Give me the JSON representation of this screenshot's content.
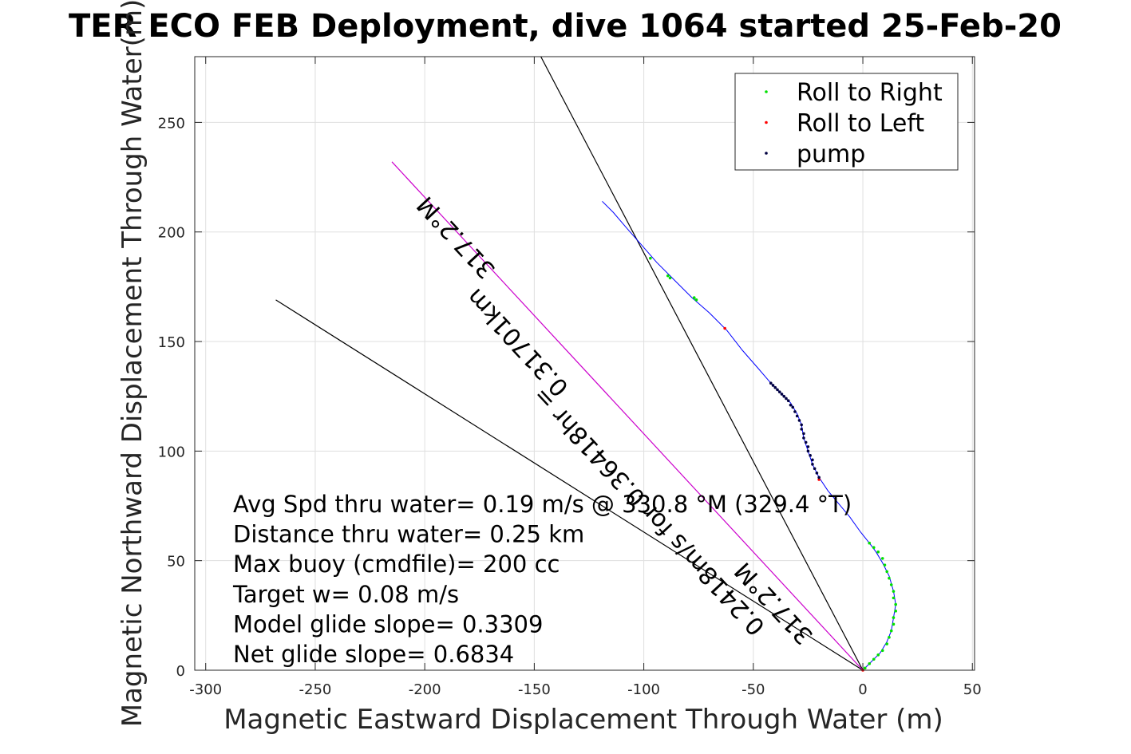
{
  "chart_data": {
    "type": "scatter",
    "title": "TER ECO FEB Deployment, dive 1064 started 25-Feb-20",
    "xlabel": "Magnetic Eastward Displacement Through Water (m)",
    "ylabel": "Magnetic Northward Displacement Through Water(m)",
    "xlim": [
      -305,
      51
    ],
    "ylim": [
      0,
      280
    ],
    "xticks": [
      -300,
      -250,
      -200,
      -150,
      -100,
      -50,
      0,
      50
    ],
    "yticks": [
      0,
      50,
      100,
      150,
      200,
      250
    ],
    "grid": true,
    "legend_position": "top-right",
    "legend": [
      {
        "name": "Roll to Right",
        "color": "#00e000"
      },
      {
        "name": "Roll to Left",
        "color": "#ff0000"
      },
      {
        "name": "pump",
        "color": "#000040"
      }
    ],
    "track": {
      "color": "#0000ff",
      "points": [
        [
          0,
          0
        ],
        [
          4,
          4
        ],
        [
          8,
          8
        ],
        [
          11,
          13
        ],
        [
          13,
          18
        ],
        [
          14,
          24
        ],
        [
          15,
          30
        ],
        [
          14,
          36
        ],
        [
          12,
          43
        ],
        [
          9,
          49
        ],
        [
          6,
          54
        ],
        [
          3,
          58
        ],
        [
          -1,
          63
        ],
        [
          -6,
          70
        ],
        [
          -11,
          76
        ],
        [
          -16,
          82
        ],
        [
          -20,
          88
        ],
        [
          -23,
          94
        ],
        [
          -25,
          100
        ],
        [
          -27,
          106
        ],
        [
          -28,
          112
        ],
        [
          -30,
          117
        ],
        [
          -33,
          122
        ],
        [
          -37,
          126
        ],
        [
          -42,
          131
        ],
        [
          -48,
          138
        ],
        [
          -55,
          146
        ],
        [
          -62,
          155
        ],
        [
          -70,
          163
        ],
        [
          -78,
          170
        ],
        [
          -86,
          178
        ],
        [
          -94,
          186
        ],
        [
          -101,
          194
        ],
        [
          -108,
          202
        ],
        [
          -114,
          209
        ],
        [
          -119,
          214
        ]
      ]
    },
    "roll_right_points": [
      [
        1,
        1
      ],
      [
        3,
        3
      ],
      [
        5,
        5
      ],
      [
        7,
        7
      ],
      [
        9,
        9
      ],
      [
        11,
        12
      ],
      [
        12,
        15
      ],
      [
        13,
        18
      ],
      [
        14,
        21
      ],
      [
        14,
        24
      ],
      [
        15,
        27
      ],
      [
        15,
        30
      ],
      [
        14,
        33
      ],
      [
        14,
        36
      ],
      [
        13,
        39
      ],
      [
        12,
        42
      ],
      [
        11,
        45
      ],
      [
        10,
        48
      ],
      [
        9,
        51
      ],
      [
        7,
        54
      ],
      [
        5,
        56
      ],
      [
        3,
        58
      ],
      [
        -76,
        169
      ],
      [
        -77,
        170
      ],
      [
        -88,
        179
      ],
      [
        -89,
        180
      ],
      [
        -97,
        188
      ]
    ],
    "roll_left_points": [
      [
        0,
        0
      ],
      [
        -20,
        87
      ],
      [
        -63,
        156
      ]
    ],
    "pump_points": [
      [
        -20,
        88
      ],
      [
        -21,
        90
      ],
      [
        -22,
        92
      ],
      [
        -23,
        94
      ],
      [
        -23,
        96
      ],
      [
        -24,
        98
      ],
      [
        -25,
        100
      ],
      [
        -25,
        102
      ],
      [
        -26,
        104
      ],
      [
        -27,
        106
      ],
      [
        -27,
        108
      ],
      [
        -28,
        110
      ],
      [
        -28,
        112
      ],
      [
        -29,
        114
      ],
      [
        -30,
        116
      ],
      [
        -31,
        118
      ],
      [
        -32,
        120
      ],
      [
        -33,
        121
      ],
      [
        -34,
        123
      ],
      [
        -35,
        124
      ],
      [
        -36,
        125
      ],
      [
        -37,
        126
      ],
      [
        -38,
        127
      ],
      [
        -39,
        128
      ],
      [
        -40,
        129
      ],
      [
        -41,
        130
      ],
      [
        -42,
        131
      ]
    ],
    "reference_lines": [
      {
        "x": [
          0,
          -147
        ],
        "y": [
          0,
          280
        ],
        "color": "#000000"
      },
      {
        "x": [
          0,
          -268
        ],
        "y": [
          0,
          169
        ],
        "color": "#000000"
      },
      {
        "x": [
          0,
          -215
        ],
        "y": [
          0,
          232
        ],
        "color": "#cc00cc"
      }
    ],
    "line_labels": [
      {
        "text": "317.2°M",
        "x": -183,
        "y": 200,
        "angle_deg": 47.2
      },
      {
        "text": "0.31701km",
        "x": -155,
        "y": 152,
        "angle_deg": 47.2
      },
      {
        "text": "0.2418m/s for 0.36418hr =",
        "x": -95,
        "y": 75,
        "angle_deg": 47.2
      },
      {
        "text": "317.2°M",
        "x": -38,
        "y": 33,
        "angle_deg": 47.2
      }
    ],
    "annotations": [
      "Avg Spd thru water=  0.19 m/s @ 330.8 °M (329.4 °T)",
      "Distance thru water=  0.25 km",
      "Max buoy (cmdfile)= 200 cc",
      "Target w= 0.08 m/s",
      "Model glide slope= 0.3309",
      "Net glide slope= 0.6834"
    ]
  }
}
